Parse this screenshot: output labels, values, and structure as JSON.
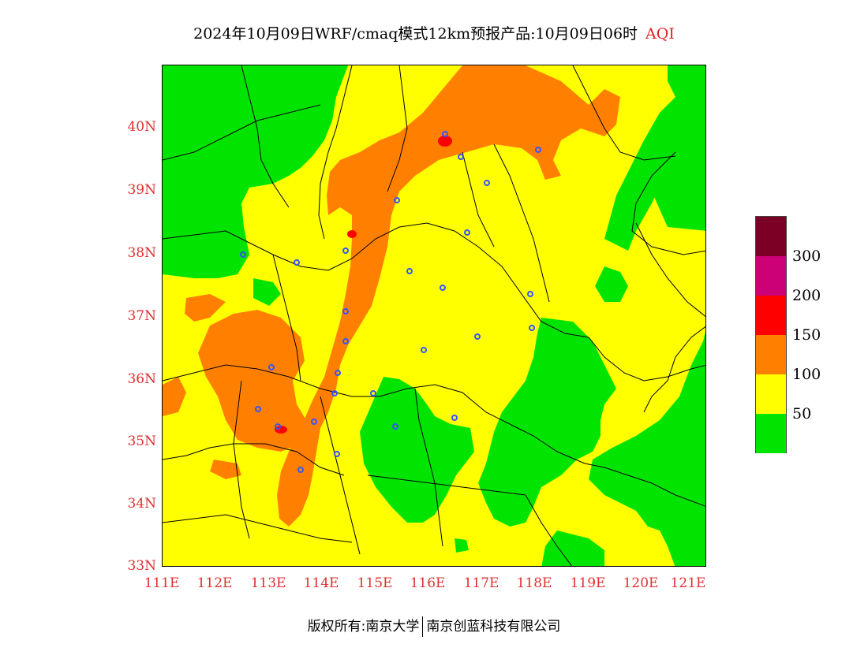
{
  "title": {
    "main": "2024年10月09日WRF/cmaq模式12km预报产品:10月09日06时",
    "product": "AQI"
  },
  "axes": {
    "lat_labels": [
      "40N",
      "39N",
      "38N",
      "37N",
      "36N",
      "35N",
      "34N",
      "33N"
    ],
    "lon_labels": [
      "111E",
      "112E",
      "113E",
      "114E",
      "115E",
      "116E",
      "117E",
      "118E",
      "119E",
      "120E",
      "121E"
    ]
  },
  "legend": {
    "labels": [
      "300",
      "200",
      "150",
      "100",
      "50"
    ],
    "colors": [
      "#7a0025",
      "#cc0077",
      "#ff0000",
      "#ff8000",
      "#ffff00",
      "#00e400"
    ]
  },
  "footer": {
    "left": "版权所有:南京大学",
    "right": "南京创蓝科技有限公司"
  },
  "colors": {
    "good": "#00e400",
    "moderate": "#ffff00",
    "unhealthy_sensitive": "#ff8000",
    "unhealthy": "#ff0000",
    "station_marker": "#3355ff",
    "axis_label": "#e03030"
  }
}
